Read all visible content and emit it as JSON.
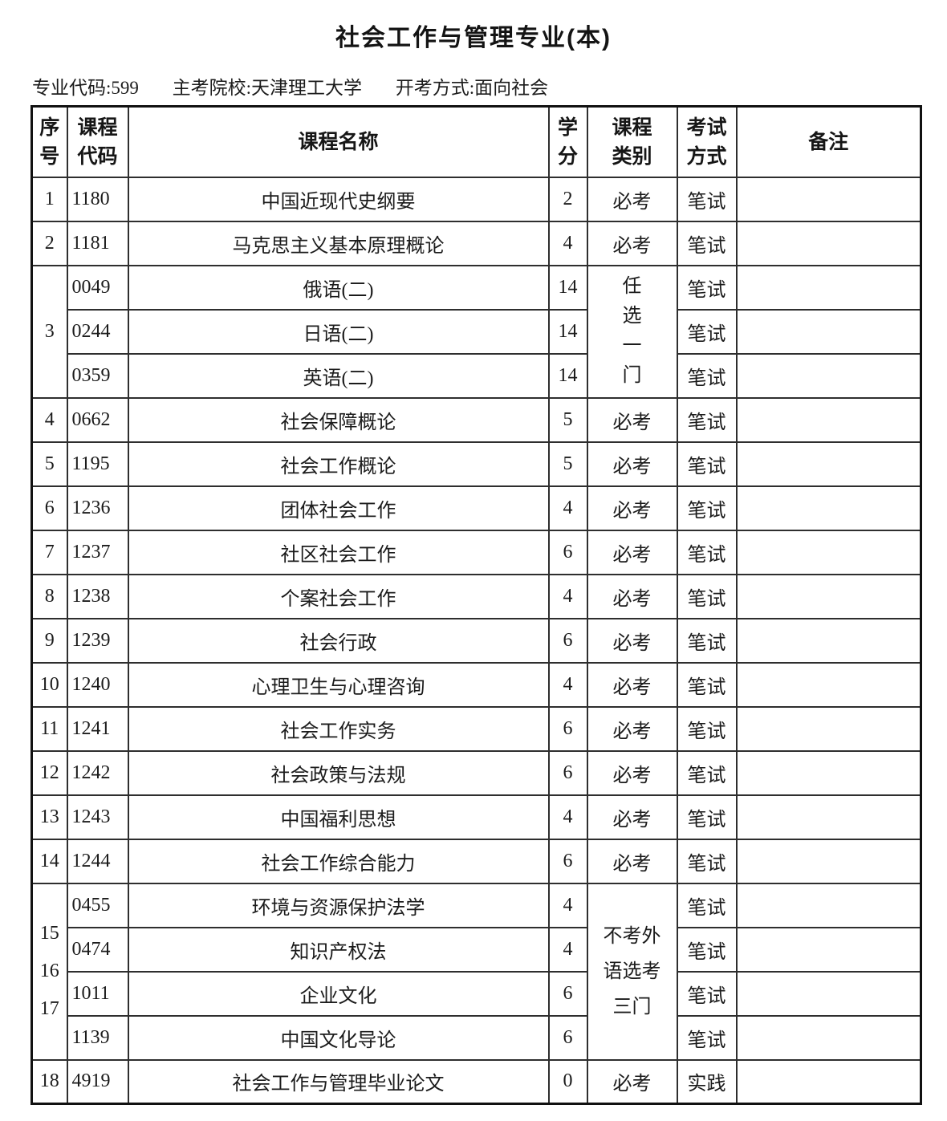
{
  "page": {
    "title": "社会工作与管理专业(本)",
    "meta": [
      "专业代码:599",
      "主考院校:天津理工大学",
      "开考方式:面向社会"
    ]
  },
  "table": {
    "headers": {
      "seq": "序\n号",
      "code": "课程\n代码",
      "name": "课程名称",
      "credit": "学\n分",
      "category": "课程\n类别",
      "exam": "考试\n方式",
      "note": "备注"
    },
    "rows": [
      {
        "cells": [
          {
            "col": "seq",
            "text": "1"
          },
          {
            "col": "code",
            "text": "1180"
          },
          {
            "col": "name",
            "text": "中国近现代史纲要"
          },
          {
            "col": "credit",
            "text": "2"
          },
          {
            "col": "category",
            "text": "必考"
          },
          {
            "col": "exam",
            "text": "笔试"
          },
          {
            "col": "note",
            "text": ""
          }
        ]
      },
      {
        "cells": [
          {
            "col": "seq",
            "text": "2"
          },
          {
            "col": "code",
            "text": "1181"
          },
          {
            "col": "name",
            "text": "马克思主义基本原理概论"
          },
          {
            "col": "credit",
            "text": "4"
          },
          {
            "col": "category",
            "text": "必考"
          },
          {
            "col": "exam",
            "text": "笔试"
          },
          {
            "col": "note",
            "text": ""
          }
        ]
      },
      {
        "cells": [
          {
            "col": "seq",
            "text": "3",
            "rowspan": 3
          },
          {
            "col": "code",
            "text": "0049"
          },
          {
            "col": "name",
            "text": "俄语(二)"
          },
          {
            "col": "credit",
            "text": "14"
          },
          {
            "col": "category",
            "text": "任\n选\n一\n门",
            "rowspan": 3,
            "cls": "cat-stack"
          },
          {
            "col": "exam",
            "text": "笔试"
          },
          {
            "col": "note",
            "text": ""
          }
        ]
      },
      {
        "cells": [
          {
            "col": "code",
            "text": "0244"
          },
          {
            "col": "name",
            "text": "日语(二)"
          },
          {
            "col": "credit",
            "text": "14"
          },
          {
            "col": "exam",
            "text": "笔试"
          },
          {
            "col": "note",
            "text": ""
          }
        ]
      },
      {
        "cells": [
          {
            "col": "code",
            "text": "0359"
          },
          {
            "col": "name",
            "text": "英语(二)"
          },
          {
            "col": "credit",
            "text": "14"
          },
          {
            "col": "exam",
            "text": "笔试"
          },
          {
            "col": "note",
            "text": ""
          }
        ]
      },
      {
        "cells": [
          {
            "col": "seq",
            "text": "4"
          },
          {
            "col": "code",
            "text": "0662"
          },
          {
            "col": "name",
            "text": "社会保障概论"
          },
          {
            "col": "credit",
            "text": "5"
          },
          {
            "col": "category",
            "text": "必考"
          },
          {
            "col": "exam",
            "text": "笔试"
          },
          {
            "col": "note",
            "text": ""
          }
        ]
      },
      {
        "cells": [
          {
            "col": "seq",
            "text": "5"
          },
          {
            "col": "code",
            "text": "1195"
          },
          {
            "col": "name",
            "text": "社会工作概论"
          },
          {
            "col": "credit",
            "text": "5"
          },
          {
            "col": "category",
            "text": "必考"
          },
          {
            "col": "exam",
            "text": "笔试"
          },
          {
            "col": "note",
            "text": ""
          }
        ]
      },
      {
        "cells": [
          {
            "col": "seq",
            "text": "6"
          },
          {
            "col": "code",
            "text": "1236"
          },
          {
            "col": "name",
            "text": "团体社会工作"
          },
          {
            "col": "credit",
            "text": "4"
          },
          {
            "col": "category",
            "text": "必考"
          },
          {
            "col": "exam",
            "text": "笔试"
          },
          {
            "col": "note",
            "text": ""
          }
        ]
      },
      {
        "cells": [
          {
            "col": "seq",
            "text": "7"
          },
          {
            "col": "code",
            "text": "1237"
          },
          {
            "col": "name",
            "text": "社区社会工作"
          },
          {
            "col": "credit",
            "text": "6"
          },
          {
            "col": "category",
            "text": "必考"
          },
          {
            "col": "exam",
            "text": "笔试"
          },
          {
            "col": "note",
            "text": ""
          }
        ]
      },
      {
        "cells": [
          {
            "col": "seq",
            "text": "8"
          },
          {
            "col": "code",
            "text": "1238"
          },
          {
            "col": "name",
            "text": "个案社会工作"
          },
          {
            "col": "credit",
            "text": "4"
          },
          {
            "col": "category",
            "text": "必考"
          },
          {
            "col": "exam",
            "text": "笔试"
          },
          {
            "col": "note",
            "text": ""
          }
        ]
      },
      {
        "cells": [
          {
            "col": "seq",
            "text": "9"
          },
          {
            "col": "code",
            "text": "1239"
          },
          {
            "col": "name",
            "text": "社会行政"
          },
          {
            "col": "credit",
            "text": "6"
          },
          {
            "col": "category",
            "text": "必考"
          },
          {
            "col": "exam",
            "text": "笔试"
          },
          {
            "col": "note",
            "text": ""
          }
        ]
      },
      {
        "cells": [
          {
            "col": "seq",
            "text": "10"
          },
          {
            "col": "code",
            "text": "1240"
          },
          {
            "col": "name",
            "text": "心理卫生与心理咨询"
          },
          {
            "col": "credit",
            "text": "4"
          },
          {
            "col": "category",
            "text": "必考"
          },
          {
            "col": "exam",
            "text": "笔试"
          },
          {
            "col": "note",
            "text": ""
          }
        ]
      },
      {
        "cells": [
          {
            "col": "seq",
            "text": "11"
          },
          {
            "col": "code",
            "text": "1241"
          },
          {
            "col": "name",
            "text": "社会工作实务"
          },
          {
            "col": "credit",
            "text": "6"
          },
          {
            "col": "category",
            "text": "必考"
          },
          {
            "col": "exam",
            "text": "笔试"
          },
          {
            "col": "note",
            "text": ""
          }
        ]
      },
      {
        "cells": [
          {
            "col": "seq",
            "text": "12"
          },
          {
            "col": "code",
            "text": "1242"
          },
          {
            "col": "name",
            "text": "社会政策与法规"
          },
          {
            "col": "credit",
            "text": "6"
          },
          {
            "col": "category",
            "text": "必考"
          },
          {
            "col": "exam",
            "text": "笔试"
          },
          {
            "col": "note",
            "text": ""
          }
        ]
      },
      {
        "cells": [
          {
            "col": "seq",
            "text": "13"
          },
          {
            "col": "code",
            "text": "1243"
          },
          {
            "col": "name",
            "text": "中国福利思想"
          },
          {
            "col": "credit",
            "text": "4"
          },
          {
            "col": "category",
            "text": "必考"
          },
          {
            "col": "exam",
            "text": "笔试"
          },
          {
            "col": "note",
            "text": ""
          }
        ]
      },
      {
        "cells": [
          {
            "col": "seq",
            "text": "14"
          },
          {
            "col": "code",
            "text": "1244"
          },
          {
            "col": "name",
            "text": "社会工作综合能力"
          },
          {
            "col": "credit",
            "text": "6"
          },
          {
            "col": "category",
            "text": "必考"
          },
          {
            "col": "exam",
            "text": "笔试"
          },
          {
            "col": "note",
            "text": ""
          }
        ]
      },
      {
        "cells": [
          {
            "col": "seq",
            "text": "15\n16\n17",
            "rowspan": 4,
            "cls": "seq-stack"
          },
          {
            "col": "code",
            "text": "0455"
          },
          {
            "col": "name",
            "text": "环境与资源保护法学"
          },
          {
            "col": "credit",
            "text": "4"
          },
          {
            "col": "category",
            "text": "不考外\n语选考\n三门",
            "rowspan": 4,
            "cls": "cat-block"
          },
          {
            "col": "exam",
            "text": "笔试"
          },
          {
            "col": "note",
            "text": ""
          }
        ]
      },
      {
        "cells": [
          {
            "col": "code",
            "text": "0474"
          },
          {
            "col": "name",
            "text": "知识产权法"
          },
          {
            "col": "credit",
            "text": "4"
          },
          {
            "col": "exam",
            "text": "笔试"
          },
          {
            "col": "note",
            "text": ""
          }
        ]
      },
      {
        "cells": [
          {
            "col": "code",
            "text": "1011"
          },
          {
            "col": "name",
            "text": "企业文化"
          },
          {
            "col": "credit",
            "text": "6"
          },
          {
            "col": "exam",
            "text": "笔试"
          },
          {
            "col": "note",
            "text": ""
          }
        ]
      },
      {
        "cells": [
          {
            "col": "code",
            "text": "1139"
          },
          {
            "col": "name",
            "text": "中国文化导论"
          },
          {
            "col": "credit",
            "text": "6"
          },
          {
            "col": "exam",
            "text": "笔试"
          },
          {
            "col": "note",
            "text": ""
          }
        ]
      },
      {
        "cells": [
          {
            "col": "seq",
            "text": "18"
          },
          {
            "col": "code",
            "text": "4919"
          },
          {
            "col": "name",
            "text": "社会工作与管理毕业论文"
          },
          {
            "col": "credit",
            "text": "0"
          },
          {
            "col": "category",
            "text": "必考"
          },
          {
            "col": "exam",
            "text": "实践"
          },
          {
            "col": "note",
            "text": ""
          }
        ]
      }
    ]
  }
}
